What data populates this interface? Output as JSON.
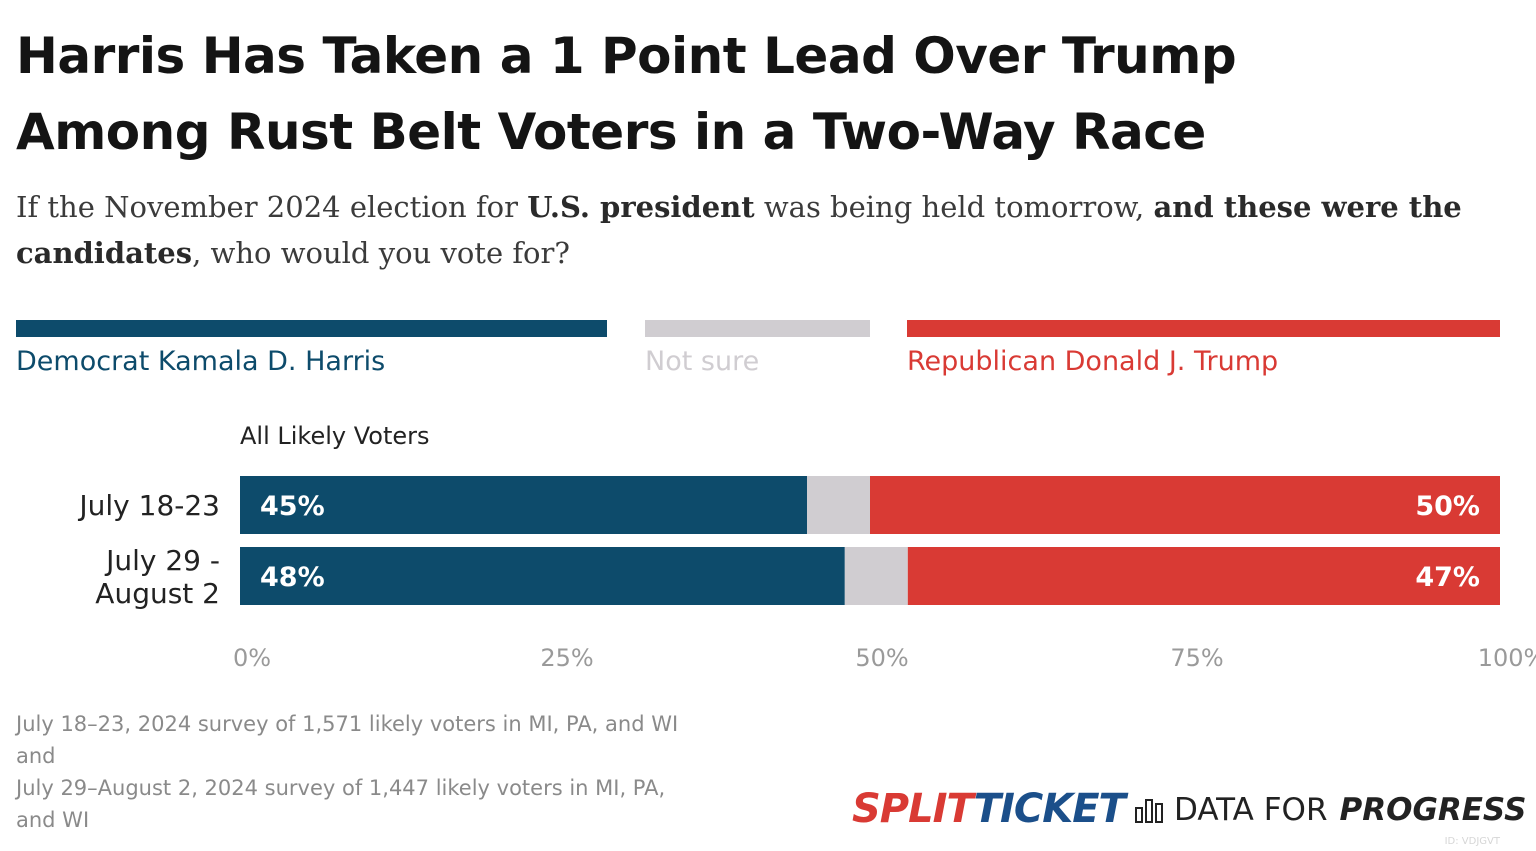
{
  "title_line1": "Harris Has Taken a 1 Point Lead Over Trump",
  "title_line2": "Among Rust Belt Voters in a Two-Way Race",
  "subtitle": {
    "p1": "If the November 2024 election for ",
    "b1": "U.S. president",
    "p2": " was being held tomorrow, ",
    "b2": "and these were the candidates",
    "p3": ", who would you vote for?"
  },
  "legend": [
    {
      "label": "Democrat Kamala D. Harris",
      "color": "#0d4b6b"
    },
    {
      "label": "Not sure",
      "color": "#d0cdd1"
    },
    {
      "label": "Republican Donald J. Trump",
      "color": "#d93a34"
    }
  ],
  "chart_data": {
    "type": "bar",
    "orientation": "horizontal-stacked",
    "group_label": "All Likely Voters",
    "categories": [
      "July 18-23",
      "July 29 - August 2"
    ],
    "category_lines": [
      [
        "July 18-23"
      ],
      [
        "July 29 -",
        "August 2"
      ]
    ],
    "series": [
      {
        "name": "Democrat Kamala D. Harris",
        "values": [
          45,
          48
        ],
        "labels": [
          "45%",
          "48%"
        ],
        "color": "#0d4b6b"
      },
      {
        "name": "Not sure",
        "values": [
          5,
          5
        ],
        "labels": [
          "",
          ""
        ],
        "color": "#d0cdd1"
      },
      {
        "name": "Republican Donald J. Trump",
        "values": [
          50,
          47
        ],
        "labels": [
          "50%",
          "47%"
        ],
        "color": "#d93a34"
      }
    ],
    "xlim": [
      0,
      100
    ],
    "xticks": [
      0,
      25,
      50,
      75,
      100
    ],
    "xtick_labels": [
      "0%",
      "25%",
      "50%",
      "75%",
      "100%"
    ]
  },
  "footnote": {
    "line1": "July 18–23, 2024 survey of 1,571 likely voters in MI, PA, and WI",
    "line2": "and",
    "line3": "July 29–August 2, 2024 survey of 1,447 likely voters in MI, PA,",
    "line4": "and WI"
  },
  "logo_split": {
    "part1": "SPLIT",
    "part2": "TICKET"
  },
  "logo_dfp": {
    "part1": "DATA FOR",
    "part2": "PROGRESS"
  },
  "id_tag": "ID: VDJGVT"
}
